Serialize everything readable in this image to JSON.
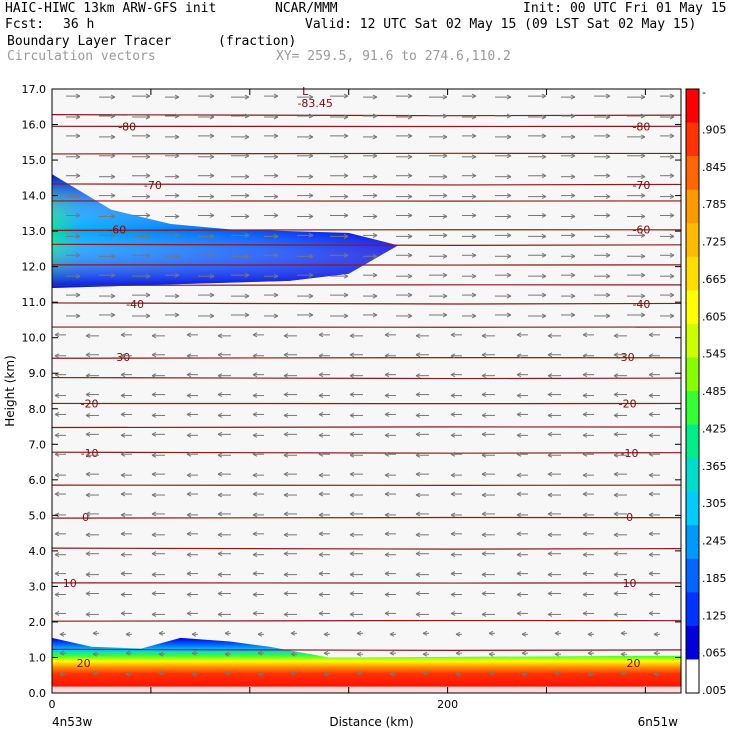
{
  "header": {
    "model": "HAIC-HIWC 13km ARW-GFS init",
    "org": "NCAR/MMM",
    "init": "Init: 00 UTC Fri 01 May 15",
    "fcst_label": "Fcst:",
    "fcst_value": "36 h",
    "valid": "Valid: 12 UTC Sat 02 May 15 (09 LST Sat 02 May 15)",
    "field_name": "Boundary Layer Tracer",
    "field_units": "(fraction)",
    "vector_name": "Circulation vectors",
    "xy": "XY= 259.5, 91.6 to 274.6,110.2"
  },
  "chart_data": {
    "type": "heatmap",
    "ylabel": "Height (km)",
    "xlabel": "Distance (km)",
    "xlim": [
      0,
      318
    ],
    "ylim": [
      0,
      17
    ],
    "yticks": [
      "0.0",
      "1.0",
      "2.0",
      "3.0",
      "4.0",
      "5.0",
      "6.0",
      "7.0",
      "8.0",
      "9.0",
      "10.0",
      "11.0",
      "12.0",
      "13.0",
      "14.0",
      "15.0",
      "16.0",
      "17.0"
    ],
    "xticks": [
      {
        "value": 0,
        "label": "0"
      },
      {
        "value": 200,
        "label": "200"
      }
    ],
    "x_endpoints": {
      "left": "4n53w",
      "right": "6n51w"
    },
    "tracer_upper_layer": {
      "description": "fraction field",
      "x": [
        0,
        30,
        60,
        90,
        120,
        150,
        175
      ],
      "bottom_km": [
        11.4,
        11.45,
        11.5,
        11.55,
        11.6,
        11.8,
        12.6
      ],
      "top_km": [
        14.6,
        13.6,
        13.2,
        13.05,
        13.0,
        12.95,
        12.6
      ],
      "peak": 0.5
    },
    "tracer_boundary_layer": {
      "x": [
        0,
        20,
        45,
        65,
        90,
        110,
        140,
        318
      ],
      "top_km": [
        1.55,
        1.3,
        1.25,
        1.55,
        1.45,
        1.3,
        1.0,
        1.05
      ],
      "peak": 0.96
    },
    "isotherms": [
      {
        "label": "-80",
        "km": 15.95,
        "left_x": 38,
        "right_x": 298
      },
      {
        "label": "-70",
        "km": 14.3,
        "left_x": 51,
        "right_x": 298
      },
      {
        "label": "-60",
        "km": 13.05,
        "left_x": 33,
        "right_x": 298
      },
      {
        "label": "-40",
        "km": 10.95,
        "left_x": 42,
        "right_x": 298
      },
      {
        "label": "-30",
        "km": 9.45,
        "left_x": 35,
        "right_x": 290
      },
      {
        "label": "-20",
        "km": 8.15,
        "left_x": 19,
        "right_x": 291
      },
      {
        "label": "-10",
        "km": 6.75,
        "left_x": 19,
        "right_x": 292
      },
      {
        "label": "0",
        "km": 4.95,
        "left_x": 17,
        "right_x": 292
      },
      {
        "label": "10",
        "km": 3.1,
        "left_x": 9,
        "right_x": 292
      },
      {
        "label": "20",
        "km": 0.85,
        "left_x": 16,
        "right_x": 294
      }
    ],
    "min_label": {
      "text": "L",
      "value": "-83.45",
      "x": 128,
      "km": 16.6
    },
    "colorbar": {
      "ticks": [
        "-",
        ".905",
        ".845",
        ".785",
        ".725",
        ".665",
        ".605",
        ".545",
        ".485",
        ".425",
        ".365",
        ".305",
        ".245",
        ".185",
        ".125",
        ".065",
        ".005"
      ],
      "colors": [
        "#ff0000",
        "#ff3300",
        "#ff6600",
        "#ff9900",
        "#ffbb00",
        "#ffdd00",
        "#ffff00",
        "#ccff00",
        "#88ff00",
        "#33ff33",
        "#00ee88",
        "#00ddcc",
        "#00ccff",
        "#0099ff",
        "#0066ff",
        "#0033ff",
        "#0000dd",
        "#ffffff"
      ]
    }
  }
}
